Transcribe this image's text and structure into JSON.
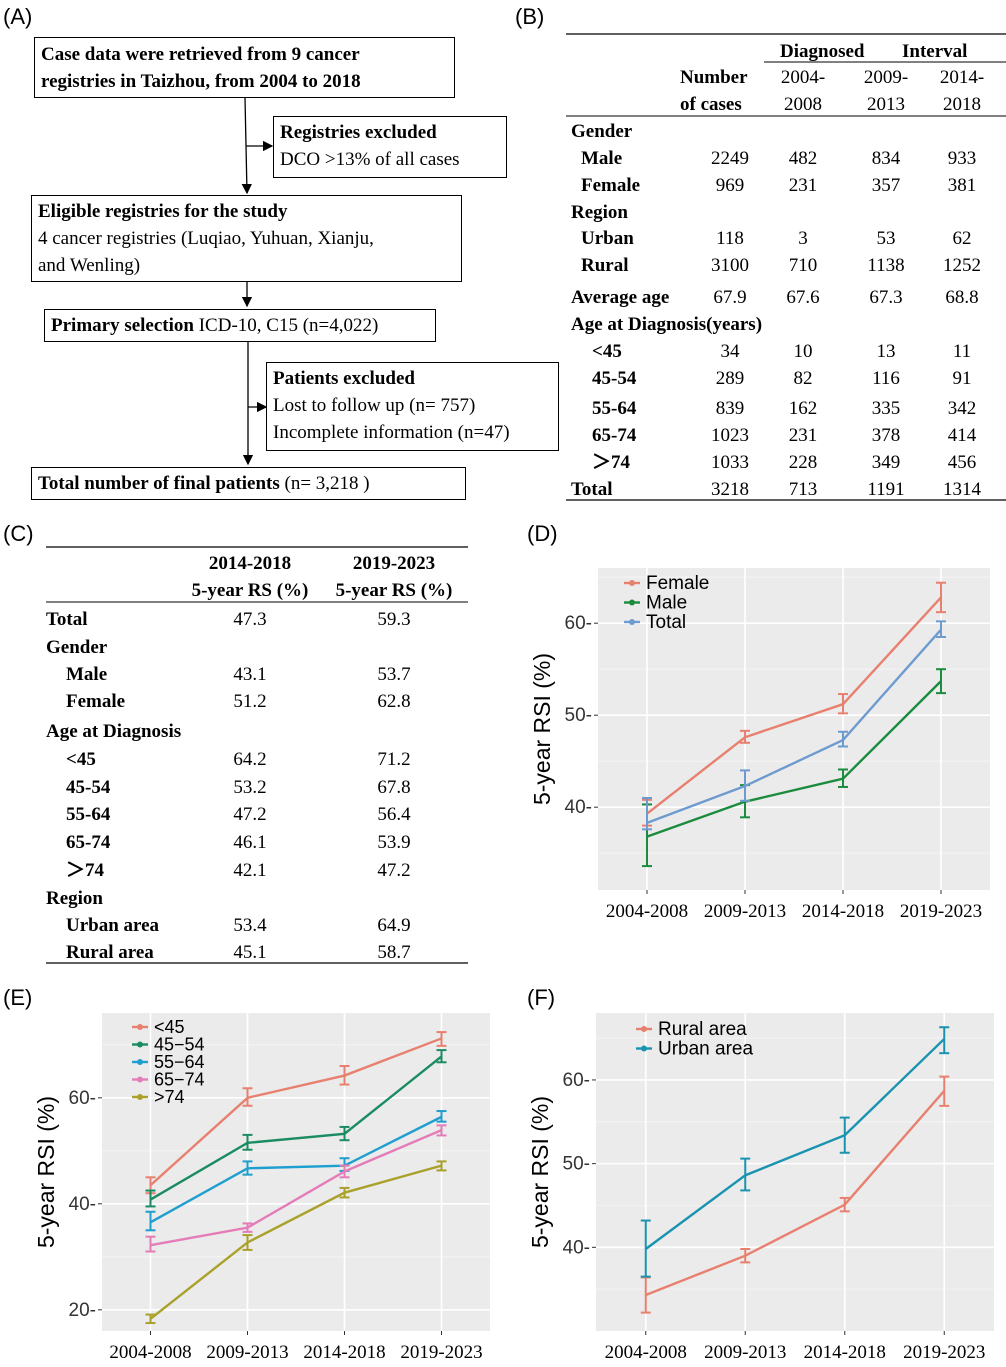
{
  "panels": {
    "a": "(A)",
    "b": "(B)",
    "c": "(C)",
    "d": "(D)",
    "e": "(E)",
    "f": "(F)"
  },
  "flow": {
    "box1": [
      "Case data were retrieved from 9 cancer",
      "registries in Taizhou, from 2004 to 2018"
    ],
    "excl1_title": "Registries excluded",
    "excl1_text": "DCO >13% of all cases",
    "box2_title": "Eligible registries for the study",
    "box2_text": [
      "4 cancer registries (Luqiao, Yuhuan, Xianju,",
      "and Wenling)"
    ],
    "box3_bold": "Primary selection",
    "box3_text": " ICD-10, C15 (n=4,022)",
    "excl2_title": "Patients excluded",
    "excl2_lines": [
      "Lost to follow up (n= 757)",
      "Incomplete information (n=47)"
    ],
    "box4_bold": "Total number of final patients",
    "box4_text": "  (n= 3,218 )"
  },
  "table_b": {
    "h_diagnosed": "Diagnosed",
    "h_interval": "Interval",
    "h_number": "Number",
    "h_cases": "of  cases",
    "periods": [
      [
        "2004-",
        "2008"
      ],
      [
        "2009-",
        "2013"
      ],
      [
        "2014-",
        "2018"
      ]
    ],
    "rows": [
      {
        "label": "Gender",
        "group": true
      },
      {
        "label": "Male",
        "vals": [
          "2249",
          "482",
          "834",
          "933"
        ]
      },
      {
        "label": "Female",
        "vals": [
          "969",
          "231",
          "357",
          "381"
        ]
      },
      {
        "label": "Region",
        "group": true
      },
      {
        "label": "Urban",
        "vals": [
          "118",
          "3",
          "53",
          "62"
        ]
      },
      {
        "label": "Rural",
        "vals": [
          "3100",
          "710",
          "1138",
          "1252"
        ]
      },
      {
        "label": "Average age",
        "group": true,
        "vals": [
          "67.9",
          "67.6",
          "67.3",
          "68.8"
        ]
      },
      {
        "label": "Age at Diagnosis(years)",
        "group": true
      },
      {
        "label": "<45",
        "vals": [
          "34",
          "10",
          "13",
          "11"
        ]
      },
      {
        "label": "45-54",
        "vals": [
          "289",
          "82",
          "116",
          "91"
        ]
      },
      {
        "label": "55-64",
        "vals": [
          "839",
          "162",
          "335",
          "342"
        ]
      },
      {
        "label": "65-74",
        "vals": [
          "1023",
          "231",
          "378",
          "414"
        ]
      },
      {
        "label": "＞74",
        "vals": [
          "1033",
          "228",
          "349",
          "456"
        ]
      },
      {
        "label": "Total",
        "group": true,
        "vals": [
          "3218",
          "713",
          "1191",
          "1314"
        ]
      }
    ]
  },
  "table_c": {
    "h1": [
      "2014-2018",
      "2019-2023"
    ],
    "h2": [
      "5-year RS (%)",
      "5-year RS (%)"
    ],
    "rows": [
      {
        "label": "Total",
        "group": true,
        "vals": [
          "47.3",
          "59.3"
        ]
      },
      {
        "label": "Gender",
        "group": true
      },
      {
        "label": "Male",
        "vals": [
          "43.1",
          "53.7"
        ]
      },
      {
        "label": "Female",
        "vals": [
          "51.2",
          "62.8"
        ]
      },
      {
        "label": "Age at Diagnosis",
        "group": true
      },
      {
        "label": "<45",
        "vals": [
          "64.2",
          "71.2"
        ]
      },
      {
        "label": "45-54",
        "vals": [
          "53.2",
          "67.8"
        ]
      },
      {
        "label": "55-64",
        "vals": [
          "47.2",
          "56.4"
        ]
      },
      {
        "label": "65-74",
        "vals": [
          "46.1",
          "53.9"
        ]
      },
      {
        "label": "＞74",
        "vals": [
          "42.1",
          "47.2"
        ]
      },
      {
        "label": "Region",
        "group": true
      },
      {
        "label": "Urban area",
        "vals": [
          "53.4",
          "64.9"
        ]
      },
      {
        "label": "Rural area",
        "vals": [
          "45.1",
          "58.7"
        ]
      }
    ]
  },
  "chart_data": [
    {
      "type": "line",
      "id": "d",
      "categories": [
        "2004-2008",
        "2009-2013",
        "2014-2018",
        "2019-2023"
      ],
      "ylabel": "5-year RSI (%)",
      "ylim": [
        31,
        66
      ],
      "yticks": [
        40,
        50,
        60
      ],
      "legend_position": "top-left",
      "series": [
        {
          "name": "Female",
          "color": "#e8806f",
          "values": [
            39.3,
            47.6,
            51.2,
            62.8
          ],
          "lo": [
            38.0,
            47.0,
            50.2,
            61.2
          ],
          "hi": [
            40.8,
            48.3,
            52.3,
            64.4
          ]
        },
        {
          "name": "Male",
          "color": "#1b8c3e",
          "values": [
            36.8,
            40.6,
            43.1,
            53.7
          ],
          "lo": [
            33.6,
            38.9,
            42.2,
            52.4
          ],
          "hi": [
            40.3,
            42.4,
            44.1,
            55.0
          ]
        },
        {
          "name": "Total",
          "color": "#6e9bcf",
          "values": [
            38.3,
            42.3,
            47.3,
            59.3
          ],
          "lo": [
            37.6,
            40.7,
            46.6,
            58.5
          ],
          "hi": [
            41.0,
            44.0,
            48.2,
            60.2
          ]
        }
      ]
    },
    {
      "type": "line",
      "id": "e",
      "categories": [
        "2004-2008",
        "2009-2013",
        "2014-2018",
        "2019-2023"
      ],
      "ylabel": "5-year RSI (%)",
      "ylim": [
        16,
        76
      ],
      "yticks": [
        20,
        40,
        60
      ],
      "legend_position": "top-left",
      "series": [
        {
          "name": "<45",
          "color": "#e8806f",
          "values": [
            43.5,
            60.0,
            64.2,
            71.2
          ],
          "lo": [
            42.0,
            58.5,
            62.5,
            69.8
          ],
          "hi": [
            45.0,
            61.8,
            66.0,
            72.4
          ]
        },
        {
          "name": "45−54",
          "color": "#1b8c62",
          "values": [
            40.8,
            51.5,
            53.2,
            67.8
          ],
          "lo": [
            39.5,
            50.2,
            52.0,
            66.7
          ],
          "hi": [
            42.5,
            53.0,
            54.5,
            69.0
          ]
        },
        {
          "name": "55−64",
          "color": "#1f9fcf",
          "values": [
            36.5,
            46.7,
            47.2,
            56.4
          ],
          "lo": [
            35.0,
            45.5,
            46.2,
            55.5
          ],
          "hi": [
            38.5,
            48.0,
            48.6,
            57.5
          ]
        },
        {
          "name": "65−74",
          "color": "#e37cb8",
          "values": [
            32.2,
            35.5,
            46.1,
            53.9
          ],
          "lo": [
            31.0,
            34.7,
            45.0,
            52.9
          ],
          "hi": [
            33.8,
            36.3,
            47.2,
            54.8
          ]
        },
        {
          "name": ">74",
          "color": "#a9a12a",
          "values": [
            18.3,
            32.7,
            42.1,
            47.2
          ],
          "lo": [
            17.5,
            31.3,
            41.2,
            46.3
          ],
          "hi": [
            19.1,
            34.1,
            43.0,
            48.0
          ]
        }
      ]
    },
    {
      "type": "line",
      "id": "f",
      "categories": [
        "2004-2008",
        "2009-2013",
        "2014-2018",
        "2019-2023"
      ],
      "ylabel": "5-year RSI (%)",
      "ylim": [
        30,
        68
      ],
      "yticks": [
        40,
        50,
        60
      ],
      "legend_position": "top-left",
      "series": [
        {
          "name": "Rural area",
          "color": "#e8806f",
          "values": [
            34.3,
            39.0,
            45.1,
            58.7
          ],
          "lo": [
            32.2,
            38.2,
            44.3,
            56.9
          ],
          "hi": [
            36.4,
            39.8,
            45.9,
            60.4
          ]
        },
        {
          "name": "Urban area",
          "color": "#1a93b0",
          "values": [
            39.8,
            48.6,
            53.4,
            64.9
          ],
          "lo": [
            36.5,
            46.8,
            51.3,
            63.2
          ],
          "hi": [
            43.2,
            50.6,
            55.5,
            66.3
          ]
        }
      ]
    }
  ]
}
